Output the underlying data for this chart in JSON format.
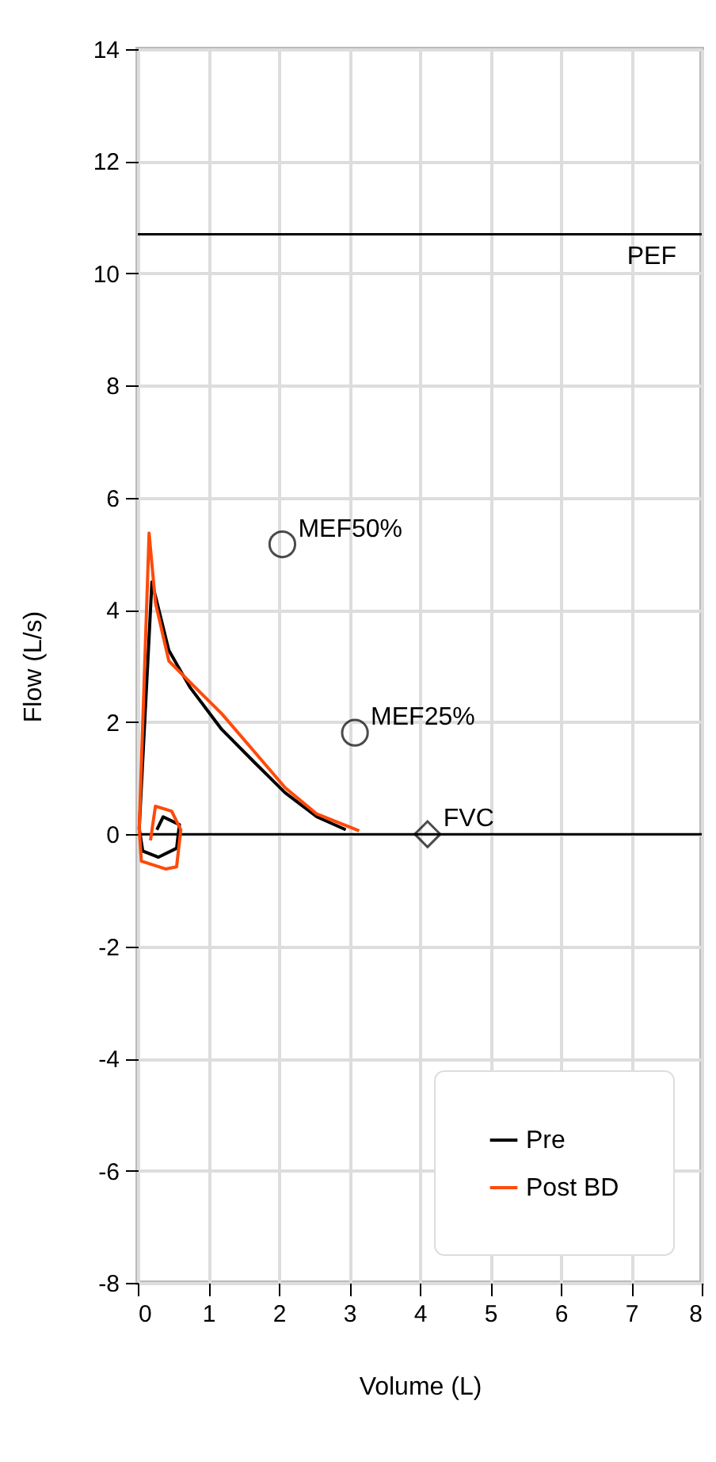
{
  "chart_data": {
    "type": "line",
    "xlabel": "Volume (L)",
    "ylabel": "Flow (L/s)",
    "xlim": [
      0,
      8
    ],
    "ylim": [
      -8,
      14
    ],
    "xticks": [
      0,
      1,
      2,
      3,
      4,
      5,
      6,
      7,
      8
    ],
    "yticks": [
      -8,
      -6,
      -4,
      -2,
      0,
      2,
      4,
      6,
      8,
      10,
      12,
      14
    ],
    "grid": true,
    "legend": "bottom right",
    "line_style": "solid",
    "marker": "none",
    "ref_lines": [
      {
        "axis": "y",
        "value": 10.7,
        "label": "PEF",
        "color": "#000000"
      },
      {
        "axis": "y",
        "value": 0,
        "color": "#000000"
      }
    ],
    "series": [
      {
        "name": "Pre",
        "color": "#000000",
        "x": [
          0.27,
          0.36,
          0.59,
          0.55,
          0.29,
          0.07,
          0.02,
          0.2,
          0.44,
          0.74,
          1.19,
          1.64,
          2.09,
          2.54,
          2.95
        ],
        "values": [
          0.08,
          0.31,
          0.17,
          -0.25,
          -0.41,
          -0.3,
          0.1,
          4.5,
          3.28,
          2.62,
          1.87,
          1.3,
          0.74,
          0.31,
          0.08
        ]
      },
      {
        "name": "Post BD",
        "color": "#ff4a0a",
        "x": [
          0.18,
          0.25,
          0.48,
          0.61,
          0.55,
          0.4,
          0.05,
          0.02,
          0.16,
          0.25,
          0.44,
          0.74,
          1.19,
          1.64,
          2.09,
          2.54,
          3.14
        ],
        "values": [
          -0.11,
          0.5,
          0.41,
          0.08,
          -0.58,
          -0.62,
          -0.48,
          0.1,
          5.37,
          4.13,
          3.09,
          2.71,
          2.15,
          1.49,
          0.83,
          0.36,
          0.06
        ]
      },
      {
        "name": "MEF50%",
        "type": "scatter",
        "marker": "circle",
        "color": "#000000",
        "x": [
          2.05
        ],
        "values": [
          5.17
        ]
      },
      {
        "name": "MEF25%",
        "type": "scatter",
        "marker": "circle",
        "color": "#000000",
        "x": [
          3.08
        ],
        "values": [
          1.81
        ]
      },
      {
        "name": "FVC",
        "type": "scatter",
        "marker": "diamond",
        "color": "#000000",
        "x": [
          4.11
        ],
        "values": [
          0
        ]
      }
    ]
  }
}
